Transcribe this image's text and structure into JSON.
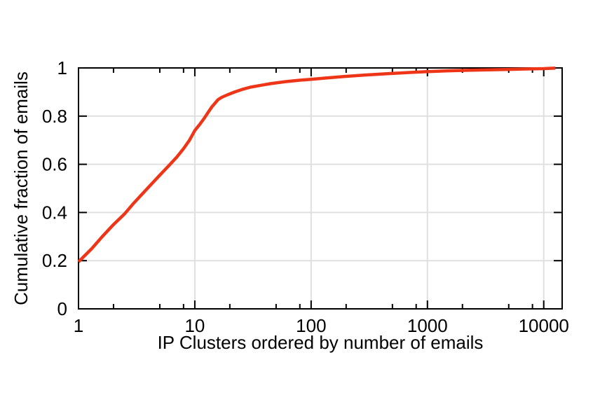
{
  "chart_data": {
    "type": "line",
    "title": "",
    "xlabel": "IP Clusters ordered by number of emails",
    "ylabel": "Cumulative fraction of emails",
    "x_scale": "log",
    "y_scale": "linear",
    "xlim": [
      1,
      14400
    ],
    "ylim": [
      0,
      1
    ],
    "grid_on": true,
    "legend": "none",
    "axis_color": "#000000",
    "text_color": "#000000",
    "grid_color": "#e0e0e0",
    "x_ticks": [
      {
        "v": 1,
        "label": "1"
      },
      {
        "v": 10,
        "label": "10"
      },
      {
        "v": 100,
        "label": "100"
      },
      {
        "v": 1000,
        "label": "1000"
      },
      {
        "v": 10000,
        "label": "10000"
      }
    ],
    "x_minor_ticks": [
      2,
      5,
      8,
      20,
      50,
      80,
      200,
      500,
      800,
      2000,
      5000,
      8000
    ],
    "y_ticks": [
      {
        "v": 0,
        "label": "0"
      },
      {
        "v": 0.2,
        "label": "0.2"
      },
      {
        "v": 0.4,
        "label": "0.4"
      },
      {
        "v": 0.6,
        "label": "0.6"
      },
      {
        "v": 0.8,
        "label": "0.8"
      },
      {
        "v": 1,
        "label": "1"
      }
    ],
    "grid_x_values": [
      10,
      100,
      1000,
      10000
    ],
    "grid_y_values": [
      0.2,
      0.4,
      0.6,
      0.8
    ],
    "series": [
      {
        "name": "cumulative fraction of emails",
        "color": "#ee3517",
        "line_width": 4.5,
        "points": [
          [
            1,
            0.195
          ],
          [
            1.3,
            0.25
          ],
          [
            1.6,
            0.3
          ],
          [
            2,
            0.35
          ],
          [
            2.5,
            0.395
          ],
          [
            3,
            0.44
          ],
          [
            4,
            0.505
          ],
          [
            5,
            0.555
          ],
          [
            6,
            0.595
          ],
          [
            7,
            0.63
          ],
          [
            8,
            0.665
          ],
          [
            9,
            0.7
          ],
          [
            10,
            0.74
          ],
          [
            11,
            0.765
          ],
          [
            12,
            0.79
          ],
          [
            13,
            0.815
          ],
          [
            14,
            0.838
          ],
          [
            15,
            0.855
          ],
          [
            15.8,
            0.868
          ],
          [
            17,
            0.878
          ],
          [
            19,
            0.888
          ],
          [
            22,
            0.9
          ],
          [
            26,
            0.912
          ],
          [
            30,
            0.92
          ],
          [
            37,
            0.928
          ],
          [
            45,
            0.935
          ],
          [
            60,
            0.943
          ],
          [
            80,
            0.949
          ],
          [
            100,
            0.953
          ],
          [
            140,
            0.959
          ],
          [
            200,
            0.965
          ],
          [
            300,
            0.971
          ],
          [
            450,
            0.976
          ],
          [
            700,
            0.981
          ],
          [
            1000,
            0.985
          ],
          [
            1500,
            0.988
          ],
          [
            2200,
            0.99
          ],
          [
            3300,
            0.992
          ],
          [
            5000,
            0.994
          ],
          [
            7000,
            0.9955
          ],
          [
            10000,
            0.997
          ],
          [
            12600,
            0.999
          ]
        ]
      }
    ]
  }
}
